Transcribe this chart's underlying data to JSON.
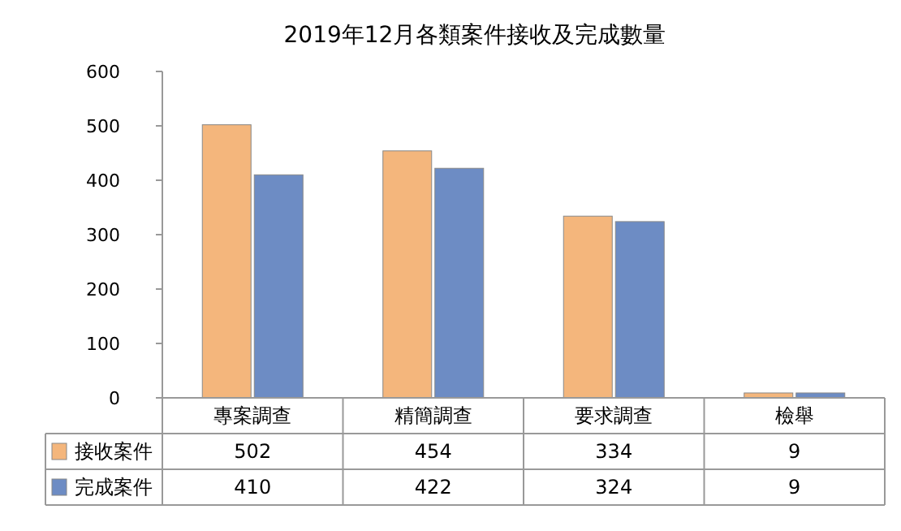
{
  "chart_data": {
    "type": "bar",
    "title": "2019年12月各類案件接收及完成數量",
    "categories": [
      "專案調查",
      "精簡調查",
      "要求調查",
      "檢舉"
    ],
    "series": [
      {
        "name": "接收案件",
        "color": "#f4b67c",
        "values": [
          502,
          454,
          334,
          9
        ]
      },
      {
        "name": "完成案件",
        "color": "#6d8cc4",
        "values": [
          410,
          422,
          324,
          9
        ]
      }
    ],
    "ylim": [
      0,
      600
    ],
    "yticks": [
      0,
      100,
      200,
      300,
      400,
      500,
      600
    ],
    "grid": false,
    "legend": "bottom",
    "data_labels": true
  }
}
